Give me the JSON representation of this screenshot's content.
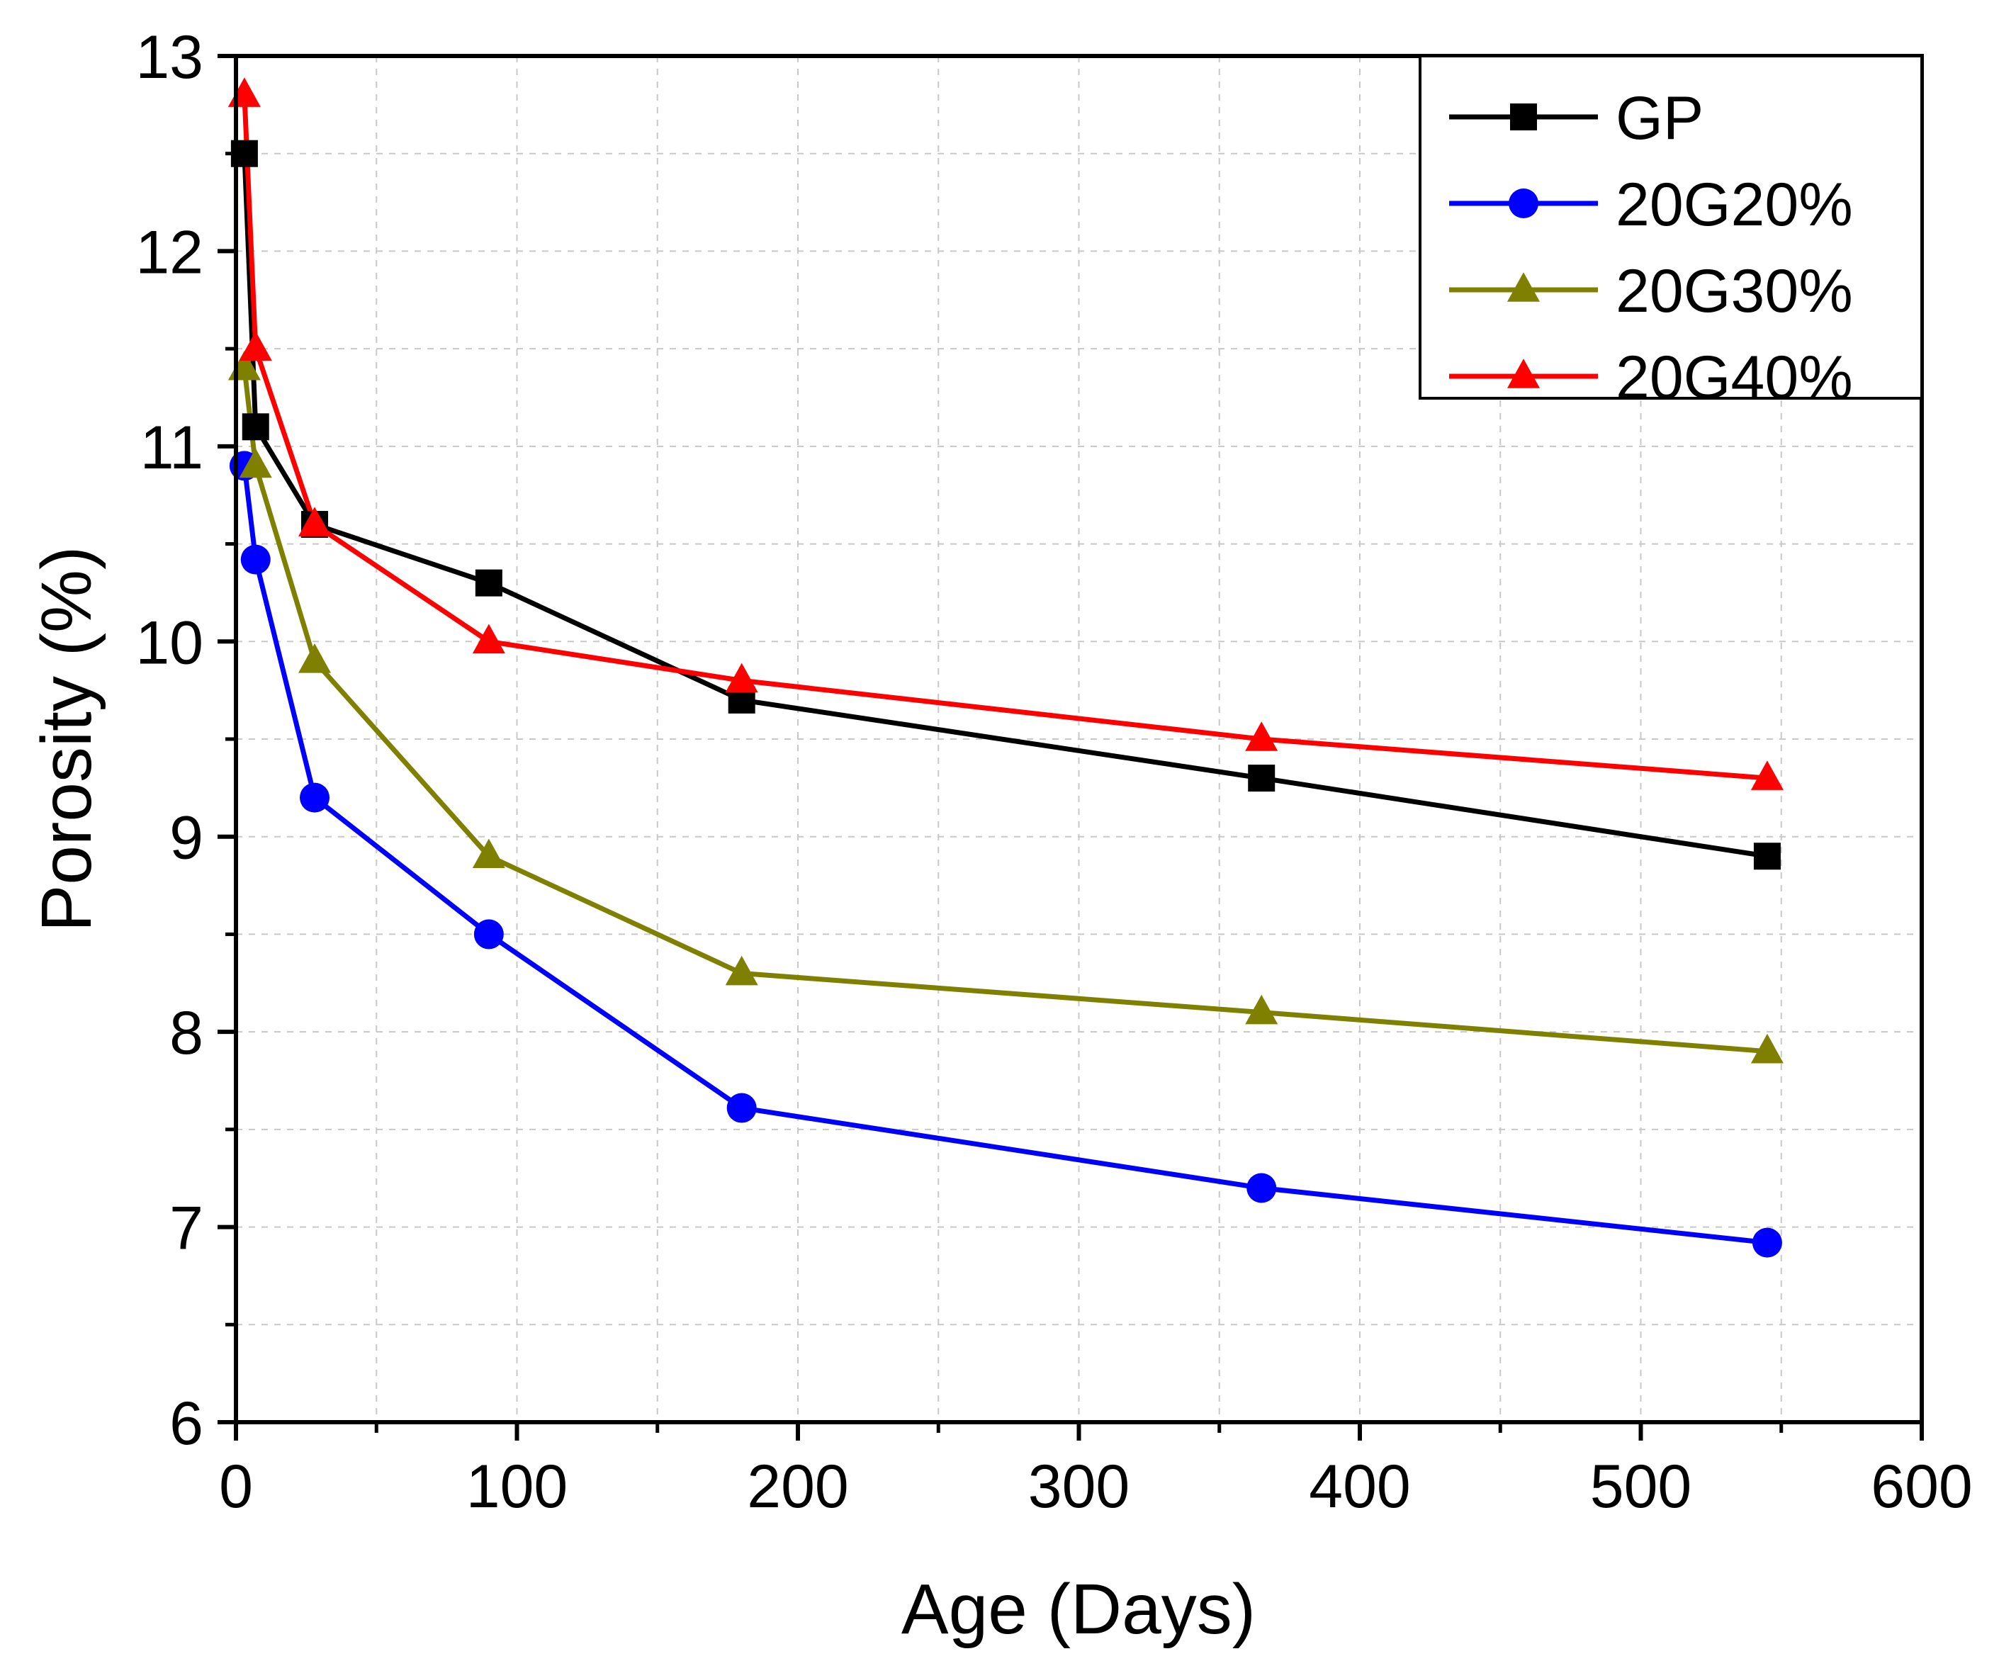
{
  "chart_data": {
    "type": "line",
    "title": "",
    "xlabel": "Age (Days)",
    "ylabel": "Porosity (%)",
    "xlim": [
      0,
      600
    ],
    "ylim": [
      6,
      13
    ],
    "xticks": [
      0,
      100,
      200,
      300,
      400,
      500,
      600
    ],
    "xtick_labels": [
      "0",
      "100",
      "200",
      "300",
      "400",
      "500",
      "600"
    ],
    "yticks": [
      6,
      7,
      8,
      9,
      10,
      11,
      12,
      13
    ],
    "ytick_labels": [
      "6",
      "7",
      "8",
      "9",
      "10",
      "11",
      "12",
      "13"
    ],
    "grid": true,
    "legend_position": "top-right",
    "x": [
      3,
      7,
      28,
      90,
      180,
      365,
      545
    ],
    "series": [
      {
        "name": "GP",
        "color": "#000000",
        "marker": "square",
        "values": [
          12.5,
          11.1,
          10.6,
          10.3,
          9.7,
          9.3,
          8.9
        ]
      },
      {
        "name": "20G20%",
        "color": "#0000FF",
        "marker": "circle",
        "values": [
          10.9,
          10.42,
          9.2,
          8.5,
          7.61,
          7.2,
          6.92
        ]
      },
      {
        "name": "20G30%",
        "color": "#808000",
        "marker": "triangle",
        "values": [
          11.4,
          10.9,
          9.9,
          8.9,
          8.3,
          8.1,
          7.9
        ]
      },
      {
        "name": "20G40%",
        "color": "#FF0000",
        "marker": "triangle",
        "values": [
          12.8,
          11.5,
          10.6,
          10.0,
          9.8,
          9.5,
          9.3
        ]
      }
    ]
  }
}
